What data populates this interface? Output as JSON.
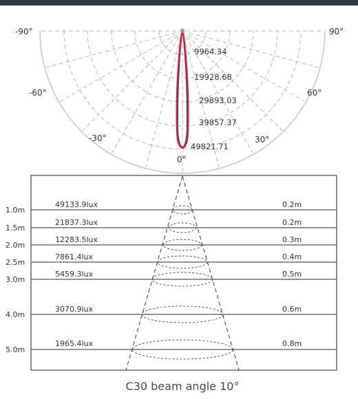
{
  "polar": {
    "angle_labels": {
      "left_90": "-90°",
      "right_90": "90°",
      "left_60": "-60°",
      "right_60": "60°",
      "left_30": "-30°",
      "right_30": "30°",
      "zero": "0°"
    },
    "ring_labels": [
      "9964.34",
      "19928.68",
      "29893.03",
      "39857.37",
      "49821.71"
    ],
    "curve_colors": {
      "primary": "#d7262b",
      "secondary": "#2f3aa8"
    }
  },
  "cone": {
    "rows": [
      {
        "distance": "1.0m",
        "lux": "49133.9lux",
        "diameter": "0.2m"
      },
      {
        "distance": "1.5m",
        "lux": "21837.3lux",
        "diameter": "0.2m"
      },
      {
        "distance": "2.0m",
        "lux": "12283.5lux",
        "diameter": "0.3m"
      },
      {
        "distance": "2.5m",
        "lux": "7861.4lux",
        "diameter": "0.4m"
      },
      {
        "distance": "3.0m",
        "lux": "5459.3lux",
        "diameter": "0.5m"
      },
      {
        "distance": "4.0m",
        "lux": "3070.9lux",
        "diameter": "0.6m"
      },
      {
        "distance": "5.0m",
        "lux": "1965.4lux",
        "diameter": "0.8m"
      }
    ]
  },
  "caption": "C30 beam angle 10°"
}
